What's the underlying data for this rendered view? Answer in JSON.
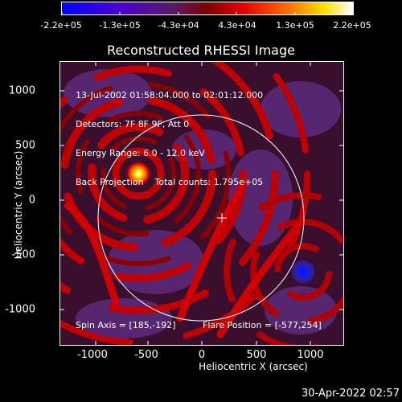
{
  "colorbar": {
    "ticks": [
      "-2.2e+05",
      "-1.3e+05",
      "-4.3e+04",
      "4.3e+04",
      "1.3e+05",
      "2.2e+05"
    ],
    "colors": [
      "#0000ff",
      "#5a00c8",
      "#6a1a7a",
      "#c80000",
      "#ff5500",
      "#ffd200",
      "#ffffff"
    ]
  },
  "image": {
    "title": "Reconstructed RHESSI Image",
    "info_lines": [
      "13-Jul-2002 01:58:04.000 to 02:01:12.000",
      "Detectors: 7F 8F 9F, Att 0",
      "Energy Range: 6.0 - 12.0 keV",
      "Back Projection    Total counts: 1.795e+05"
    ],
    "spin_axis": "Spin Axis = [185,-192]",
    "flare_position": "Flare Position = [-577,254]",
    "x_axis_label": "Heliocentric X (arcsec)",
    "y_axis_label": "Heliocentric Y (arcsec)",
    "x_ticks": [
      "-1000",
      "-500",
      "0",
      "500",
      "1000"
    ],
    "y_ticks": [
      "1000",
      "500",
      "0",
      "-500",
      "-1000"
    ],
    "x_range": [
      -1300,
      1300
    ],
    "y_range": [
      -1300,
      1300
    ],
    "solar_disk_radius_arcsec": 940,
    "bright_source": [
      -577,
      254
    ],
    "dark_source": [
      930,
      -630
    ],
    "spin_axis_marker": [
      185,
      -192
    ]
  },
  "footer": {
    "timestamp": "30-Apr-2022 02:57"
  }
}
